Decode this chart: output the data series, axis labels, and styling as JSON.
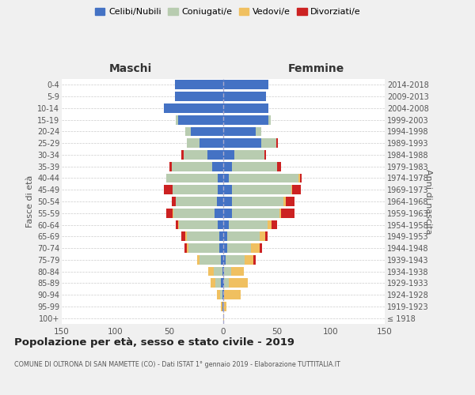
{
  "age_groups": [
    "100+",
    "95-99",
    "90-94",
    "85-89",
    "80-84",
    "75-79",
    "70-74",
    "65-69",
    "60-64",
    "55-59",
    "50-54",
    "45-49",
    "40-44",
    "35-39",
    "30-34",
    "25-29",
    "20-24",
    "15-19",
    "10-14",
    "5-9",
    "0-4"
  ],
  "birth_years": [
    "≤ 1918",
    "1919-1923",
    "1924-1928",
    "1929-1933",
    "1934-1938",
    "1939-1943",
    "1944-1948",
    "1949-1953",
    "1954-1958",
    "1959-1963",
    "1964-1968",
    "1969-1973",
    "1974-1978",
    "1979-1983",
    "1984-1988",
    "1989-1993",
    "1994-1998",
    "1999-2003",
    "2004-2008",
    "2009-2013",
    "2014-2018"
  ],
  "colors": {
    "celibi": "#4472C4",
    "coniugati": "#B8CCB0",
    "vedovi": "#F0C060",
    "divorziati": "#CC2222"
  },
  "maschi": {
    "celibi": [
      0,
      1,
      1,
      2,
      1,
      2,
      4,
      4,
      5,
      8,
      6,
      5,
      5,
      10,
      15,
      22,
      30,
      42,
      55,
      45,
      45
    ],
    "coniugati": [
      0,
      0,
      2,
      5,
      8,
      20,
      28,
      30,
      36,
      38,
      38,
      42,
      48,
      38,
      22,
      12,
      5,
      2,
      0,
      0,
      0
    ],
    "vedovi": [
      0,
      1,
      3,
      5,
      5,
      2,
      2,
      1,
      1,
      1,
      0,
      0,
      0,
      0,
      0,
      0,
      0,
      0,
      0,
      0,
      0
    ],
    "divorziati": [
      0,
      0,
      0,
      0,
      0,
      0,
      2,
      4,
      2,
      6,
      4,
      8,
      0,
      2,
      2,
      0,
      0,
      0,
      0,
      0,
      0
    ]
  },
  "femmine": {
    "celibi": [
      0,
      0,
      1,
      1,
      1,
      2,
      4,
      4,
      5,
      8,
      8,
      8,
      5,
      8,
      10,
      35,
      30,
      42,
      42,
      40,
      42
    ],
    "coniugati": [
      0,
      0,
      0,
      4,
      6,
      18,
      22,
      30,
      36,
      44,
      48,
      55,
      65,
      42,
      28,
      14,
      5,
      2,
      0,
      0,
      0
    ],
    "vedovi": [
      1,
      3,
      15,
      18,
      12,
      8,
      8,
      5,
      4,
      2,
      2,
      1,
      1,
      0,
      0,
      0,
      0,
      0,
      0,
      0,
      0
    ],
    "divorziati": [
      0,
      0,
      0,
      0,
      0,
      2,
      2,
      2,
      5,
      12,
      8,
      8,
      2,
      4,
      2,
      2,
      0,
      0,
      0,
      0,
      0
    ]
  },
  "xlim": 150,
  "title": "Popolazione per età, sesso e stato civile - 2019",
  "subtitle": "COMUNE DI OLTRONA DI SAN MAMETTE (CO) - Dati ISTAT 1° gennaio 2019 - Elaborazione TUTTITALIA.IT",
  "ylabel_left": "Fasce di età",
  "ylabel_right": "Anni di nascita",
  "xlabel_maschi": "Maschi",
  "xlabel_femmine": "Femmine",
  "legend_labels": [
    "Celibi/Nubili",
    "Coniugati/e",
    "Vedovi/e",
    "Divorziati/e"
  ],
  "background_color": "#f0f0f0",
  "plot_bg": "#ffffff"
}
